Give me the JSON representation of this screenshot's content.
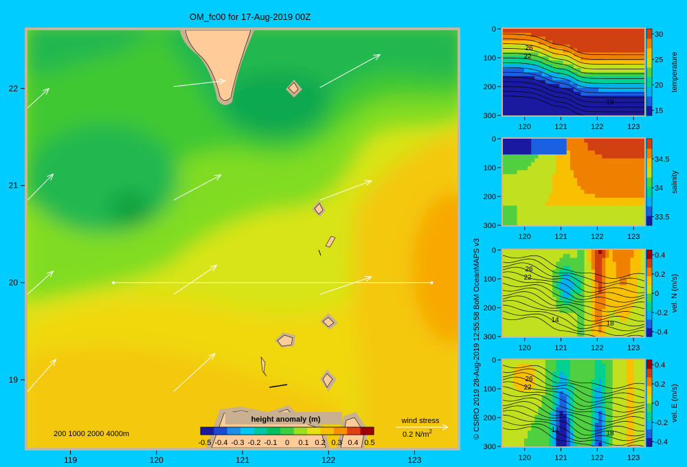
{
  "title": "OM_fc00 for 17-Aug-2019 00Z",
  "credit": "© CSIRO 2019   28-Aug-2019 12:55:58 BoM OceanMAPS v3",
  "colors": {
    "background": "#00ccff",
    "land": "#ffcc99",
    "shelf": "#c8b090",
    "frame": "#c0b8a0"
  },
  "map": {
    "chart_data": {
      "type": "heatmap",
      "variable": "height anomaly (m)",
      "xlim": [
        118.5,
        123.5
      ],
      "ylim": [
        18.3,
        22.6
      ],
      "x_ticks": [
        "119",
        "120",
        "121",
        "122",
        "123"
      ],
      "y_ticks": [
        "19",
        "20",
        "21",
        "22"
      ],
      "colorbar": {
        "label": "height anomaly (m)",
        "ticks": [
          "-0.5",
          "-0.4",
          "-0.3",
          "-0.2",
          "-0.1",
          "0",
          "0.1",
          "0.2",
          "0.3",
          "0.4",
          "0.5"
        ],
        "colors": [
          "#1a1aa0",
          "#1a4ad0",
          "#1a8ee8",
          "#00c8f0",
          "#00c8a0",
          "#00c060",
          "#3cd040",
          "#9ce020",
          "#e8e010",
          "#f8c000",
          "#f89000",
          "#e04010",
          "#a00000"
        ]
      },
      "section_line": {
        "lat": 20.0,
        "lon": [
          119.5,
          123.2
        ]
      },
      "bathymetry_legend": "200  1000  2000  4000m",
      "wind_legend": {
        "title": "wind stress",
        "value": "0.2 N/m",
        "sup": "2"
      },
      "wind_vectors": [
        {
          "lon": 118.5,
          "lat": 21.8,
          "dlon": 0.25,
          "dlat": 0.2
        },
        {
          "lon": 120.2,
          "lat": 22.02,
          "dlon": 0.6,
          "dlat": 0.06
        },
        {
          "lon": 121.9,
          "lat": 22.01,
          "dlon": 0.7,
          "dlat": 0.34
        },
        {
          "lon": 118.5,
          "lat": 20.85,
          "dlon": 0.3,
          "dlat": 0.27
        },
        {
          "lon": 120.2,
          "lat": 20.85,
          "dlon": 0.55,
          "dlat": 0.26
        },
        {
          "lon": 121.9,
          "lat": 20.85,
          "dlon": 0.6,
          "dlat": 0.2
        },
        {
          "lon": 118.5,
          "lat": 19.88,
          "dlon": 0.3,
          "dlat": 0.24
        },
        {
          "lon": 120.2,
          "lat": 19.88,
          "dlon": 0.5,
          "dlat": 0.3
        },
        {
          "lon": 121.9,
          "lat": 19.88,
          "dlon": 0.6,
          "dlat": 0.18
        },
        {
          "lon": 118.5,
          "lat": 18.88,
          "dlon": 0.33,
          "dlat": 0.33
        },
        {
          "lon": 120.2,
          "lat": 18.88,
          "dlon": 0.48,
          "dlat": 0.39
        }
      ]
    }
  },
  "sections": [
    {
      "id": "temperature",
      "colorbar_label": "temperature",
      "cb_ticks": [
        "30",
        "25",
        "20",
        "15"
      ],
      "cb_vals": [
        30,
        25,
        20,
        15
      ],
      "cb_range": [
        14,
        31
      ],
      "cmap": [
        "#1a1aa0",
        "#1a60e0",
        "#00b0f0",
        "#00d090",
        "#50d040",
        "#c0e020",
        "#f8c000",
        "#f08000",
        "#d04010"
      ],
      "contour_labels": [
        "26",
        "22",
        "18"
      ],
      "depth_ticks": [
        "0",
        "100",
        "200",
        "300"
      ],
      "lon_ticks": [
        "120",
        "121",
        "122",
        "123"
      ]
    },
    {
      "id": "salinity",
      "colorbar_label": "salinity",
      "cb_ticks": [
        "34.5",
        "34",
        "33.5"
      ],
      "cb_vals": [
        34.5,
        34,
        33.5
      ],
      "cb_range": [
        33.35,
        34.85
      ],
      "cmap": [
        "#1a1aa0",
        "#1a60e0",
        "#00b0f0",
        "#00d090",
        "#50d040",
        "#c0e020",
        "#f8c000",
        "#f08000",
        "#d04010"
      ],
      "contour_labels": [],
      "depth_ticks": [
        "0",
        "100",
        "200",
        "300"
      ],
      "lon_ticks": [
        "120",
        "121",
        "122",
        "123"
      ]
    },
    {
      "id": "vel-n",
      "colorbar_label": "vel. N (m/s)",
      "cb_ticks": [
        "0.4",
        "0.2",
        "0",
        "-0.2",
        "-0.4"
      ],
      "cb_vals": [
        0.4,
        0.2,
        0,
        -0.2,
        -0.4
      ],
      "cb_range": [
        -0.45,
        0.45
      ],
      "cmap": [
        "#1a1aa0",
        "#1a60e0",
        "#00b0f0",
        "#00d090",
        "#50d040",
        "#c0e020",
        "#f8c000",
        "#f08000",
        "#d04010",
        "#a00000"
      ],
      "contour_labels": [
        "26",
        "22",
        "14",
        "18"
      ],
      "depth_ticks": [
        "0",
        "100",
        "200",
        "300"
      ],
      "lon_ticks": [
        "120",
        "121",
        "122",
        "123"
      ]
    },
    {
      "id": "vel-e",
      "colorbar_label": "vel. E (m/s)",
      "cb_ticks": [
        "0.4",
        "0.2",
        "0",
        "-0.2",
        "-0.4"
      ],
      "cb_vals": [
        0.4,
        0.2,
        0,
        -0.2,
        -0.4
      ],
      "cb_range": [
        -0.45,
        0.45
      ],
      "cmap": [
        "#1a1aa0",
        "#1a60e0",
        "#00b0f0",
        "#00d090",
        "#50d040",
        "#c0e020",
        "#f8c000",
        "#f08000",
        "#d04010",
        "#a00000"
      ],
      "contour_labels": [
        "26",
        "22",
        "14",
        "18"
      ],
      "depth_ticks": [
        "0",
        "100",
        "200",
        "300"
      ],
      "lon_ticks": [
        "120",
        "121",
        "122",
        "123"
      ]
    }
  ]
}
